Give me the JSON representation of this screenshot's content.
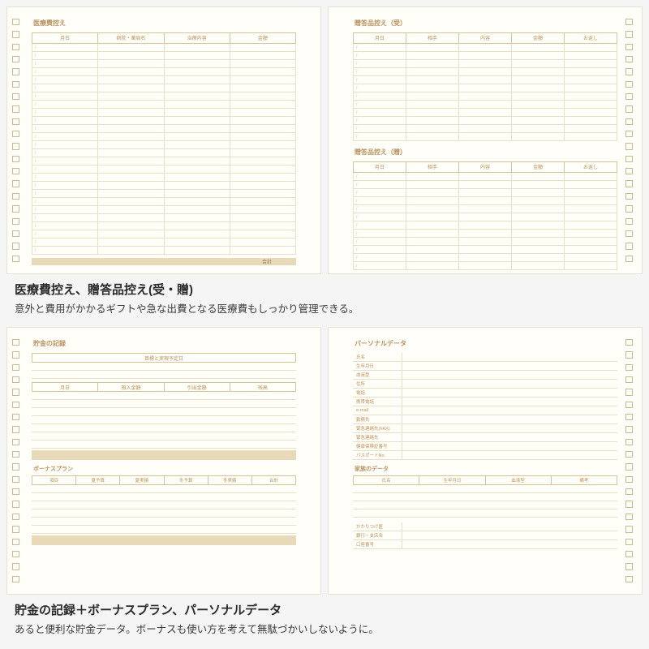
{
  "colors": {
    "paper": "#fffef9",
    "line": "#e8dfc8",
    "line_strong": "#d4c49a",
    "accent": "#b8935f",
    "band": "#e8d9b8",
    "text_dark": "#2a2a2a",
    "background": "#f5f5f5"
  },
  "section1": {
    "page_left": {
      "title": "医療費控え",
      "headers": [
        "月日",
        "病院・薬局名",
        "治療内容",
        "金額"
      ],
      "row_count": 26,
      "total_label": "合計"
    },
    "page_right": {
      "top": {
        "title": "贈答品控え（受）",
        "headers": [
          "月日",
          "相手",
          "内容",
          "金額",
          "お返し"
        ],
        "row_count": 12
      },
      "bottom": {
        "title": "贈答品控え（贈）",
        "headers": [
          "月日",
          "相手",
          "内容",
          "金額",
          "お返し"
        ],
        "row_count": 12
      }
    },
    "caption_title": "医療費控え、贈答品控え(受・贈)",
    "caption_body": "意外と費用がかかるギフトや急な出費となる医療費もしっかり管理できる。"
  },
  "section2": {
    "page_left": {
      "title": "貯金の記録",
      "goal_header": "目標と実現予定日",
      "savings_labels": [
        "月日",
        "預入金額",
        "引出金額",
        "残高"
      ],
      "mid_title": "ボーナスプラン",
      "bonus_headers": [
        "項目",
        "夏予算",
        "夏実績",
        "冬予算",
        "冬実績",
        "合計"
      ]
    },
    "page_right": {
      "title": "パーソナルデータ",
      "fields": [
        "氏名",
        "生年月日",
        "血液型",
        "住所",
        "電話",
        "携帯電話",
        "e-mail",
        "勤務先",
        "緊急連絡先(FAX)",
        "緊急連絡先",
        "健康保険証番号",
        "パスポートNo."
      ],
      "mid_title": "家族のデータ",
      "family_headers": [
        "氏名",
        "生年月日",
        "血液型",
        "備考"
      ],
      "bottom_fields": [
        "かかりつけ医",
        "銀行・支店名",
        "口座番号"
      ]
    },
    "caption_title": "貯金の記録＋ボーナスプラン、パーソナルデータ",
    "caption_body": "あると便利な貯金データ。ボーナスも使い方を考えて無駄づかいしないように。"
  }
}
